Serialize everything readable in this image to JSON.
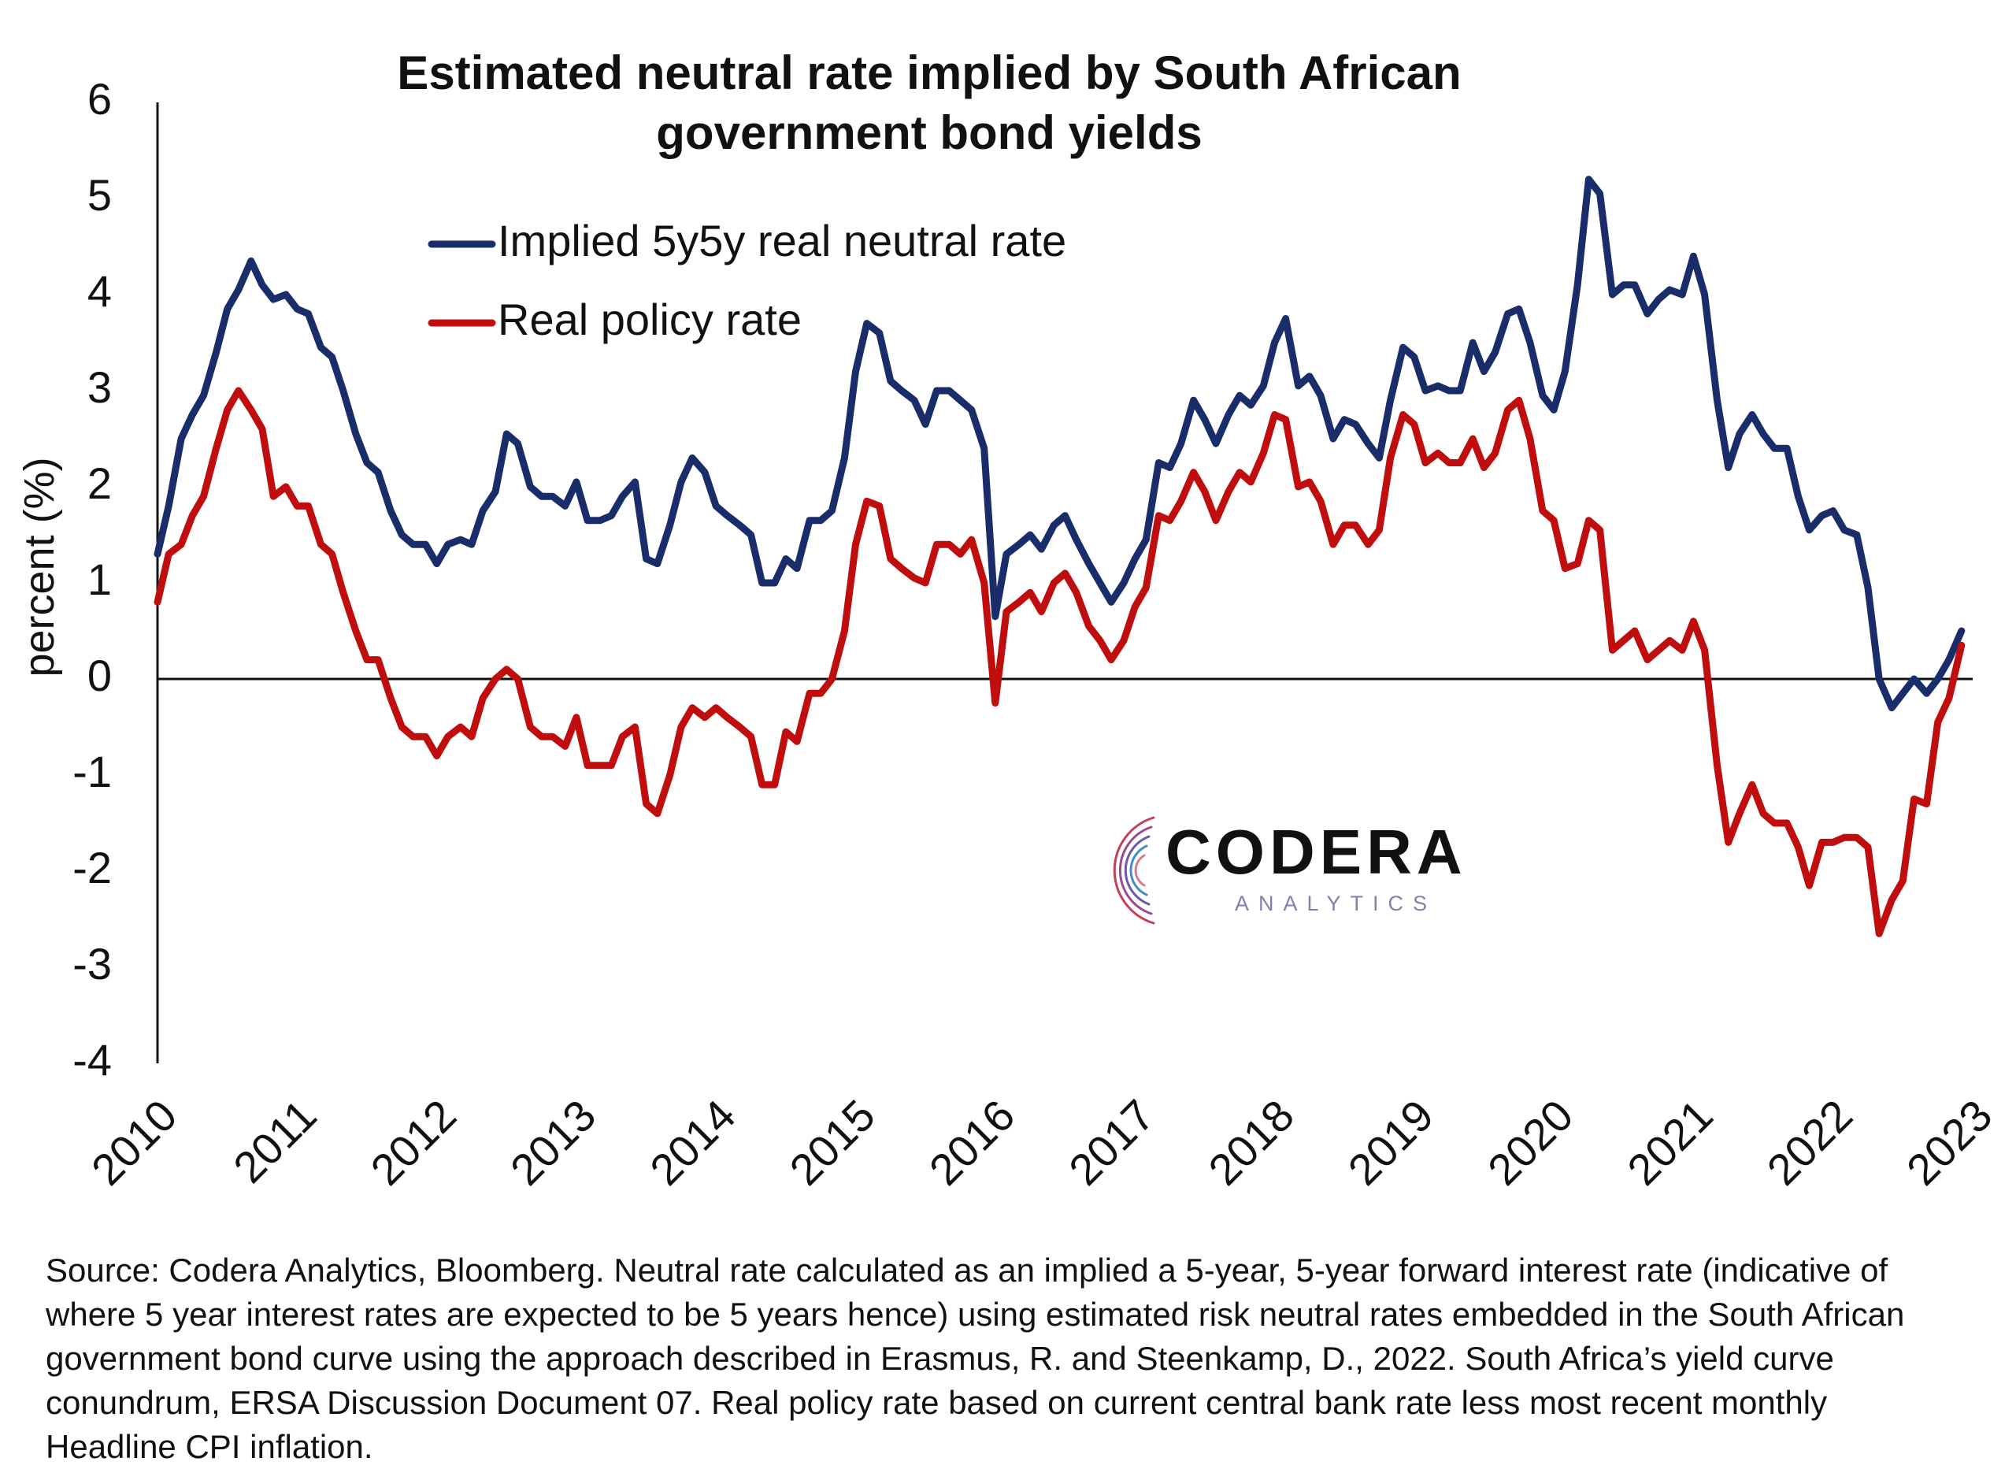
{
  "chart_data": {
    "type": "line",
    "title": "Estimated neutral rate implied by South African government bond yields",
    "ylabel": "percent (%)",
    "xlabel": "",
    "ylim": [
      -4,
      6
    ],
    "yticks": [
      "6",
      "5",
      "4",
      "3",
      "2",
      "1",
      "0",
      "-1",
      "-2",
      "-3",
      "-4"
    ],
    "xticks": [
      "2010",
      "2011",
      "2012",
      "2013",
      "2014",
      "2015",
      "2016",
      "2017",
      "2018",
      "2019",
      "2020",
      "2021",
      "2022",
      "2023"
    ],
    "xlim": [
      2010,
      2023
    ],
    "zero_line": true,
    "legend_position": "top-left",
    "series": [
      {
        "name": "Implied 5y5y real neutral rate",
        "color": "#1a2d6b",
        "x": [
          2010.0,
          2010.08,
          2010.17,
          2010.25,
          2010.33,
          2010.42,
          2010.5,
          2010.58,
          2010.67,
          2010.75,
          2010.83,
          2010.92,
          2011.0,
          2011.08,
          2011.17,
          2011.25,
          2011.33,
          2011.42,
          2011.5,
          2011.58,
          2011.67,
          2011.75,
          2011.83,
          2011.92,
          2012.0,
          2012.08,
          2012.17,
          2012.25,
          2012.33,
          2012.42,
          2012.5,
          2012.58,
          2012.67,
          2012.75,
          2012.83,
          2012.92,
          2013.0,
          2013.08,
          2013.17,
          2013.25,
          2013.33,
          2013.42,
          2013.5,
          2013.58,
          2013.67,
          2013.75,
          2013.83,
          2013.92,
          2014.0,
          2014.08,
          2014.17,
          2014.25,
          2014.33,
          2014.42,
          2014.5,
          2014.58,
          2014.67,
          2014.75,
          2014.83,
          2014.92,
          2015.0,
          2015.08,
          2015.17,
          2015.25,
          2015.33,
          2015.42,
          2015.5,
          2015.58,
          2015.67,
          2015.75,
          2015.83,
          2015.92,
          2016.0,
          2016.08,
          2016.17,
          2016.25,
          2016.33,
          2016.42,
          2016.5,
          2016.58,
          2016.67,
          2016.75,
          2016.83,
          2016.92,
          2017.0,
          2017.08,
          2017.17,
          2017.25,
          2017.33,
          2017.42,
          2017.5,
          2017.58,
          2017.67,
          2017.75,
          2017.83,
          2017.92,
          2018.0,
          2018.08,
          2018.17,
          2018.25,
          2018.33,
          2018.42,
          2018.5,
          2018.58,
          2018.67,
          2018.75,
          2018.83,
          2018.92,
          2019.0,
          2019.08,
          2019.17,
          2019.25,
          2019.33,
          2019.42,
          2019.5,
          2019.58,
          2019.67,
          2019.75,
          2019.83,
          2019.92,
          2020.0,
          2020.08,
          2020.17,
          2020.25,
          2020.33,
          2020.42,
          2020.5,
          2020.58,
          2020.67,
          2020.75,
          2020.83,
          2020.92,
          2021.0,
          2021.08,
          2021.17,
          2021.25,
          2021.33,
          2021.42,
          2021.5,
          2021.58,
          2021.67,
          2021.75,
          2021.83,
          2021.92,
          2022.0,
          2022.08,
          2022.17,
          2022.25,
          2022.33,
          2022.42,
          2022.5,
          2022.58,
          2022.67,
          2022.75,
          2022.83,
          2022.92
        ],
        "values": [
          1.3,
          1.8,
          2.5,
          2.75,
          2.95,
          3.4,
          3.85,
          4.05,
          4.35,
          4.1,
          3.95,
          4.0,
          3.85,
          3.8,
          3.45,
          3.35,
          3.0,
          2.55,
          2.25,
          2.15,
          1.75,
          1.5,
          1.4,
          1.4,
          1.2,
          1.4,
          1.45,
          1.4,
          1.75,
          1.95,
          2.55,
          2.45,
          2.0,
          1.9,
          1.9,
          1.8,
          2.05,
          1.65,
          1.65,
          1.7,
          1.9,
          2.05,
          1.25,
          1.2,
          1.6,
          2.05,
          2.3,
          2.15,
          1.8,
          1.7,
          1.6,
          1.5,
          1.0,
          1.0,
          1.25,
          1.15,
          1.65,
          1.65,
          1.75,
          2.3,
          3.2,
          3.7,
          3.6,
          3.1,
          3.0,
          2.9,
          2.65,
          3.0,
          3.0,
          2.9,
          2.8,
          2.4,
          0.65,
          1.3,
          1.4,
          1.5,
          1.35,
          1.6,
          1.7,
          1.45,
          1.2,
          1.0,
          0.8,
          1.0,
          1.25,
          1.45,
          2.25,
          2.2,
          2.45,
          2.9,
          2.7,
          2.45,
          2.75,
          2.95,
          2.85,
          3.05,
          3.5,
          3.75,
          3.05,
          3.15,
          2.95,
          2.5,
          2.7,
          2.65,
          2.45,
          2.3,
          2.9,
          3.45,
          3.35,
          3.0,
          3.05,
          3.0,
          3.0,
          3.5,
          3.2,
          3.4,
          3.8,
          3.85,
          3.5,
          2.95,
          2.8,
          3.2,
          4.1,
          5.2,
          5.05,
          4.0,
          4.1,
          4.1,
          3.8,
          3.95,
          4.05,
          4.0,
          4.4,
          4.0,
          2.9,
          2.2,
          2.55,
          2.75,
          2.55,
          2.4,
          2.4,
          1.9,
          1.55,
          1.7,
          1.75,
          1.55,
          1.5,
          0.95,
          0.0,
          -0.3,
          -0.15,
          0.0,
          -0.15,
          0.0,
          0.2,
          0.5
        ]
      },
      {
        "name": "Real policy rate",
        "color": "#c00d0d",
        "x": [
          2010.0,
          2010.08,
          2010.17,
          2010.25,
          2010.33,
          2010.42,
          2010.5,
          2010.58,
          2010.67,
          2010.75,
          2010.83,
          2010.92,
          2011.0,
          2011.08,
          2011.17,
          2011.25,
          2011.33,
          2011.42,
          2011.5,
          2011.58,
          2011.67,
          2011.75,
          2011.83,
          2011.92,
          2012.0,
          2012.08,
          2012.17,
          2012.25,
          2012.33,
          2012.42,
          2012.5,
          2012.58,
          2012.67,
          2012.75,
          2012.83,
          2012.92,
          2013.0,
          2013.08,
          2013.17,
          2013.25,
          2013.33,
          2013.42,
          2013.5,
          2013.58,
          2013.67,
          2013.75,
          2013.83,
          2013.92,
          2014.0,
          2014.08,
          2014.17,
          2014.25,
          2014.33,
          2014.42,
          2014.5,
          2014.58,
          2014.67,
          2014.75,
          2014.83,
          2014.92,
          2015.0,
          2015.08,
          2015.17,
          2015.25,
          2015.33,
          2015.42,
          2015.5,
          2015.58,
          2015.67,
          2015.75,
          2015.83,
          2015.92,
          2016.0,
          2016.08,
          2016.17,
          2016.25,
          2016.33,
          2016.42,
          2016.5,
          2016.58,
          2016.67,
          2016.75,
          2016.83,
          2016.92,
          2017.0,
          2017.08,
          2017.17,
          2017.25,
          2017.33,
          2017.42,
          2017.5,
          2017.58,
          2017.67,
          2017.75,
          2017.83,
          2017.92,
          2018.0,
          2018.08,
          2018.17,
          2018.25,
          2018.33,
          2018.42,
          2018.5,
          2018.58,
          2018.67,
          2018.75,
          2018.83,
          2018.92,
          2019.0,
          2019.08,
          2019.17,
          2019.25,
          2019.33,
          2019.42,
          2019.5,
          2019.58,
          2019.67,
          2019.75,
          2019.83,
          2019.92,
          2020.0,
          2020.08,
          2020.17,
          2020.25,
          2020.33,
          2020.42,
          2020.5,
          2020.58,
          2020.67,
          2020.75,
          2020.83,
          2020.92,
          2021.0,
          2021.08,
          2021.17,
          2021.25,
          2021.33,
          2021.42,
          2021.5,
          2021.58,
          2021.67,
          2021.75,
          2021.83,
          2021.92,
          2022.0,
          2022.08,
          2022.17,
          2022.25,
          2022.33,
          2022.42,
          2022.5,
          2022.58,
          2022.67,
          2022.75,
          2022.83,
          2022.92
        ],
        "values": [
          0.8,
          1.3,
          1.4,
          1.7,
          1.9,
          2.4,
          2.8,
          3.0,
          2.8,
          2.6,
          1.9,
          2.0,
          1.8,
          1.8,
          1.4,
          1.3,
          0.9,
          0.5,
          0.2,
          0.2,
          -0.2,
          -0.5,
          -0.6,
          -0.6,
          -0.8,
          -0.6,
          -0.5,
          -0.6,
          -0.2,
          0.0,
          0.1,
          0.0,
          -0.5,
          -0.6,
          -0.6,
          -0.7,
          -0.4,
          -0.9,
          -0.9,
          -0.9,
          -0.6,
          -0.5,
          -1.3,
          -1.4,
          -1.0,
          -0.5,
          -0.3,
          -0.4,
          -0.3,
          -0.4,
          -0.5,
          -0.6,
          -1.1,
          -1.1,
          -0.55,
          -0.65,
          -0.15,
          -0.15,
          0.0,
          0.5,
          1.4,
          1.85,
          1.8,
          1.25,
          1.15,
          1.05,
          1.0,
          1.4,
          1.4,
          1.3,
          1.45,
          1.0,
          -0.25,
          0.7,
          0.8,
          0.9,
          0.7,
          1.0,
          1.1,
          0.9,
          0.55,
          0.4,
          0.2,
          0.4,
          0.75,
          0.95,
          1.7,
          1.65,
          1.85,
          2.15,
          1.95,
          1.65,
          1.95,
          2.15,
          2.05,
          2.35,
          2.75,
          2.7,
          2.0,
          2.05,
          1.85,
          1.4,
          1.6,
          1.6,
          1.4,
          1.55,
          2.3,
          2.75,
          2.65,
          2.25,
          2.35,
          2.25,
          2.25,
          2.5,
          2.2,
          2.35,
          2.8,
          2.9,
          2.5,
          1.75,
          1.65,
          1.15,
          1.2,
          1.65,
          1.55,
          0.3,
          0.4,
          0.5,
          0.2,
          0.3,
          0.4,
          0.3,
          0.6,
          0.3,
          -0.9,
          -1.7,
          -1.4,
          -1.1,
          -1.4,
          -1.5,
          -1.5,
          -1.75,
          -2.15,
          -1.7,
          -1.7,
          -1.65,
          -1.65,
          -1.75,
          -2.65,
          -2.3,
          -2.1,
          -1.25,
          -1.3,
          -0.45,
          -0.2,
          0.35
        ]
      }
    ]
  },
  "legend": {
    "items": [
      {
        "label": "Implied 5y5y real neutral rate",
        "color": "#1a2d6b"
      },
      {
        "label": "Real policy rate",
        "color": "#c00d0d"
      }
    ]
  },
  "logo": {
    "word": "CODERA",
    "sub": "ANALYTICS"
  },
  "source_note": "Source: Codera Analytics, Bloomberg. Neutral rate calculated as an implied a 5-year, 5-year forward interest rate (indicative of where 5 year interest rates are expected to be 5 years hence) using estimated risk neutral rates embedded in the South African government bond curve using the approach described in Erasmus, R. and Steenkamp, D., 2022. South Africa’s yield curve conundrum, ERSA Discussion Document 07. Real policy rate based on current central bank rate less most recent monthly Headline CPI inflation."
}
